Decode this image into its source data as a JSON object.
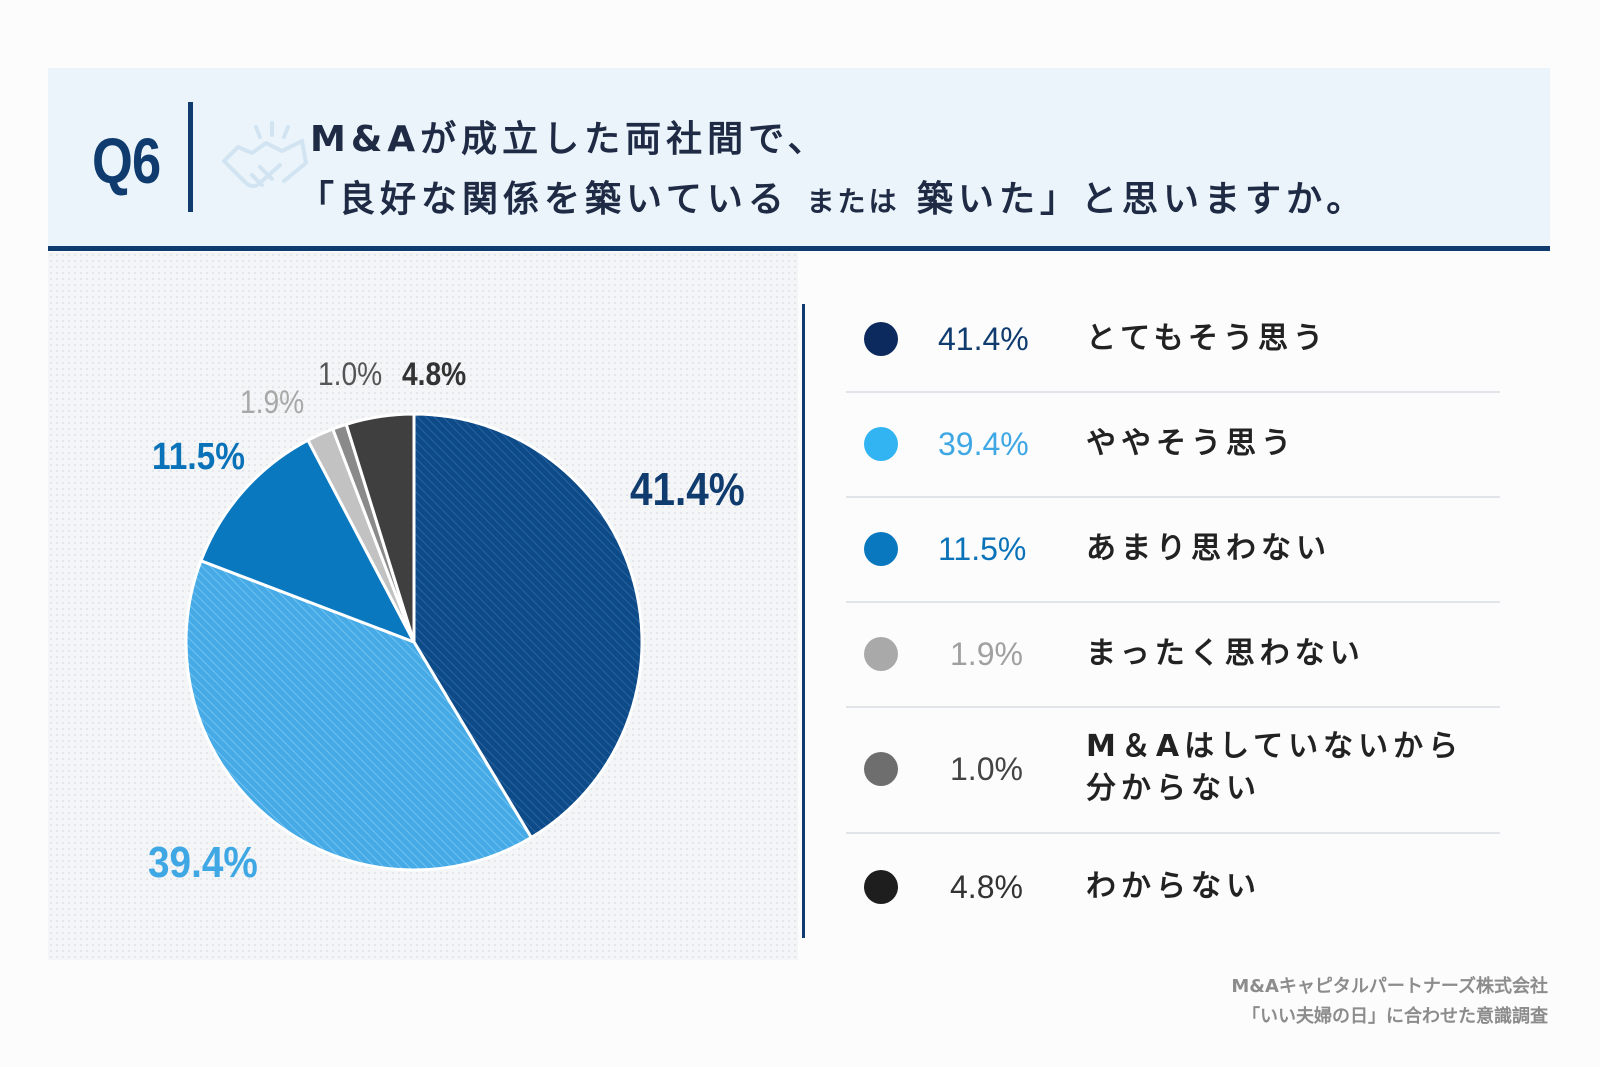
{
  "header": {
    "question_number": "Q6",
    "line1": "M&Aが成立した両社間で、",
    "line2_a": "「良好な関係を築いている",
    "line2_b": "または",
    "line2_c": "築いた」と思いますか。",
    "icon": "handshake-icon"
  },
  "chart_data": {
    "type": "pie",
    "title": "M&Aが成立した両社間で、「良好な関係を築いている または 築いた」と思いますか。",
    "start_angle": "12 o'clock",
    "direction": "clockwise",
    "slices": [
      {
        "label": "とてもそう思う",
        "value": 41.4,
        "value_label": "41.4%",
        "color": "#0d4a88",
        "label_color": "#0f3b6e",
        "hatched": true
      },
      {
        "label": "ややそう思う",
        "value": 39.4,
        "value_label": "39.4%",
        "color": "#45aae6",
        "label_color": "#3fa8e4",
        "hatched": true
      },
      {
        "label": "あまり思わない",
        "value": 11.5,
        "value_label": "11.5%",
        "color": "#0a78bf",
        "label_color": "#0a72b8",
        "hatched": false
      },
      {
        "label": "まったく思わない",
        "value": 1.9,
        "value_label": "1.9%",
        "color": "#c2c2c2",
        "label_color": "#a8a8a8",
        "hatched": false
      },
      {
        "label": "M&Aはしていないから分からない",
        "value": 1.0,
        "value_label": "1.0%",
        "color": "#8a8a8a",
        "label_color": "#555555",
        "hatched": false
      },
      {
        "label": "わからない",
        "value": 4.8,
        "value_label": "4.8%",
        "color": "#3f3f3f",
        "label_color": "#333333",
        "hatched": false
      }
    ]
  },
  "legend": {
    "items": [
      {
        "pct": "41.4%",
        "text": "とてもそう思う",
        "dot_color": "#0c2a5e",
        "pct_color": "#0f3b6e"
      },
      {
        "pct": "39.4%",
        "text": "ややそう思う",
        "dot_color": "#33b4f2",
        "pct_color": "#3fa8e4"
      },
      {
        "pct": "11.5%",
        "text": "あまり思わない",
        "dot_color": "#0a78bf",
        "pct_color": "#0a72b8"
      },
      {
        "pct": "1.9%",
        "text": "まったく思わない",
        "dot_color": "#a9a9a9",
        "pct_color": "#a0a0a0"
      },
      {
        "pct": "1.0%",
        "text": "M＆Aはしていないから",
        "text2": "分からない",
        "dot_color": "#6e6e6e",
        "pct_color": "#444444"
      },
      {
        "pct": "4.8%",
        "text": "わからない",
        "dot_color": "#1e1e1e",
        "pct_color": "#333333"
      }
    ]
  },
  "source": {
    "line1": "M&Aキャピタルパートナーズ株式会社",
    "line2": "「いい夫婦の日」に合わせた意識調査"
  }
}
